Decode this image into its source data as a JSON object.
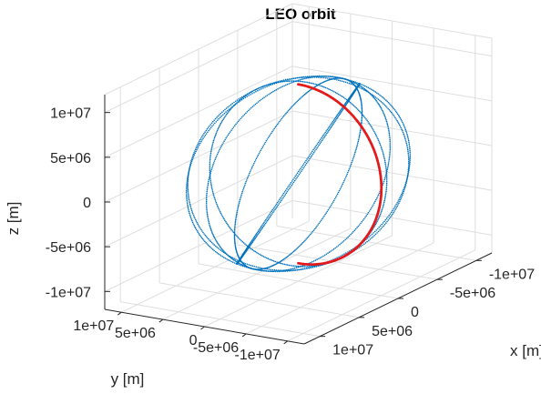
{
  "chart_data": {
    "type": "scatter",
    "projection": "3d",
    "title": "LEO orbit",
    "xlabel": "x [m]",
    "ylabel": "y [m]",
    "zlabel": "z [m]",
    "xlim": [
      -12000000,
      12000000
    ],
    "ylim": [
      -12000000,
      12000000
    ],
    "zlim": [
      -12000000,
      12000000
    ],
    "x_ticks": [
      "1e+07",
      "5e+06",
      "0",
      "-5e+06",
      "-1e+07"
    ],
    "y_ticks": [
      "1e+07",
      "5e+06",
      "0",
      "-5e+06",
      "-1e+07"
    ],
    "z_ticks": [
      "1e+07",
      "5e+06",
      "0",
      "-5e+06",
      "-1e+07"
    ],
    "x_tick_values": [
      10000000,
      5000000,
      0,
      -5000000,
      -10000000
    ],
    "y_tick_values": [
      10000000,
      5000000,
      0,
      -5000000,
      -10000000
    ],
    "z_tick_values": [
      10000000,
      5000000,
      0,
      -5000000,
      -10000000
    ],
    "grid": true,
    "series": [
      {
        "color": "#0072bd",
        "marker": "dot",
        "orbit_radius": 10000000,
        "inclination_deg": 60,
        "note_shape": "multiple passes of a circular orbit around origin",
        "passes": [
          {
            "raan_deg": 0
          },
          {
            "raan_deg": 30
          },
          {
            "raan_deg": 60
          },
          {
            "raan_deg": 90
          },
          {
            "raan_deg": 120
          },
          {
            "raan_deg": 150
          }
        ]
      },
      {
        "color": "#e31a1c",
        "marker": "dot",
        "orbit_radius": 10000000,
        "inclination_deg": 90,
        "raan_deg": 90,
        "arc_deg": [
          90,
          270
        ]
      }
    ]
  }
}
